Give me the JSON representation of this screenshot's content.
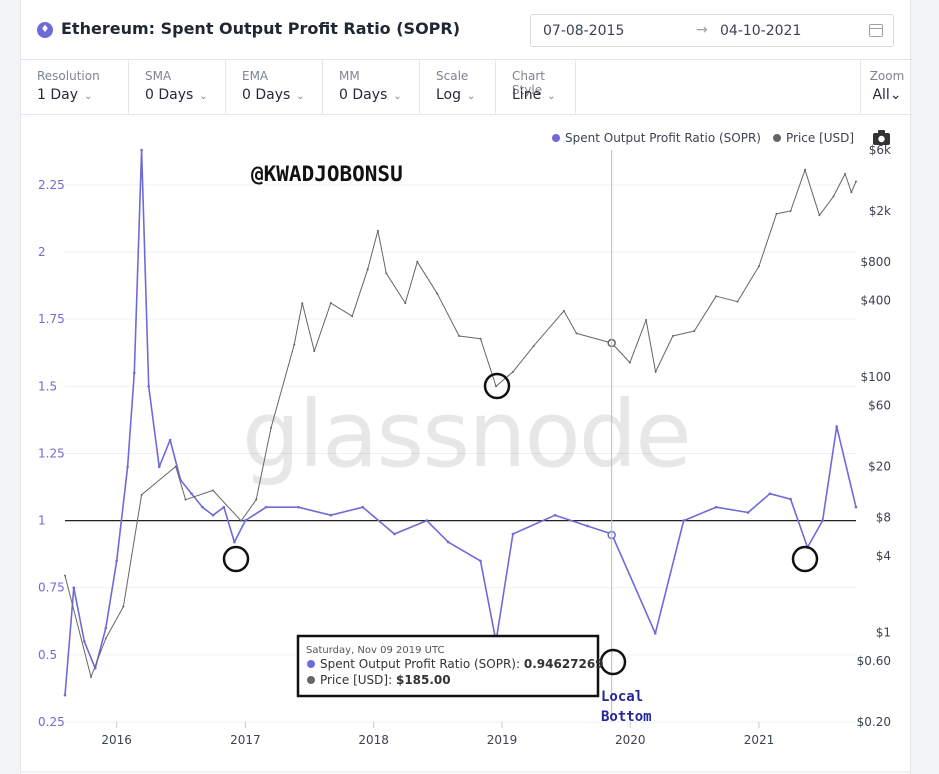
{
  "header": {
    "title": "Ethereum: Spent Output Profit Ratio (SOPR)",
    "date_from": "07-08-2015",
    "date_to": "04-10-2021",
    "arrow": "→"
  },
  "toolbar": {
    "controls": [
      {
        "label": "Resolution",
        "value": "1 Day"
      },
      {
        "label": "SMA",
        "value": "0 Days"
      },
      {
        "label": "EMA",
        "value": "0 Days"
      },
      {
        "label": "MM",
        "value": "0 Days"
      },
      {
        "label": "Scale",
        "value": "Log"
      },
      {
        "label": "Chart Style",
        "value": "Line"
      }
    ],
    "zoom": {
      "label": "Zoom",
      "value": "All"
    }
  },
  "colors": {
    "sopr": "#6f6bd6",
    "price": "#666666",
    "baseline": "#222222"
  },
  "overlays": {
    "watermark": "glassnode",
    "handle": "@KWADJOBONSU",
    "annotation": [
      "Local",
      "Bottom"
    ]
  },
  "tooltip": {
    "date": "Saturday, Nov 09 2019 UTC",
    "sopr_label": "Spent Output Profit Ratio (SOPR):",
    "sopr_value": "0.94627269",
    "price_label": "Price [USD]:",
    "price_value": "$185.00"
  },
  "chart_data": {
    "type": "line",
    "legend_position": "top-right",
    "series": [
      {
        "name": "Spent Output Profit Ratio (SOPR)",
        "axis": "left",
        "points": [
          [
            "2015-08-07",
            0.35
          ],
          [
            "2015-09-01",
            0.75
          ],
          [
            "2015-10-01",
            0.55
          ],
          [
            "2015-11-01",
            0.45
          ],
          [
            "2015-12-01",
            0.6
          ],
          [
            "2016-01-01",
            0.85
          ],
          [
            "2016-02-01",
            1.2
          ],
          [
            "2016-02-20",
            1.55
          ],
          [
            "2016-03-12",
            2.38
          ],
          [
            "2016-04-01",
            1.5
          ],
          [
            "2016-05-01",
            1.2
          ],
          [
            "2016-06-01",
            1.3
          ],
          [
            "2016-07-01",
            1.15
          ],
          [
            "2016-08-01",
            1.1
          ],
          [
            "2016-09-01",
            1.05
          ],
          [
            "2016-10-01",
            1.02
          ],
          [
            "2016-11-01",
            1.05
          ],
          [
            "2016-12-01",
            0.92
          ],
          [
            "2017-01-01",
            1.0
          ],
          [
            "2017-03-01",
            1.05
          ],
          [
            "2017-06-01",
            1.05
          ],
          [
            "2017-09-01",
            1.02
          ],
          [
            "2017-12-01",
            1.05
          ],
          [
            "2018-03-01",
            0.95
          ],
          [
            "2018-06-01",
            1.0
          ],
          [
            "2018-08-01",
            0.92
          ],
          [
            "2018-11-01",
            0.85
          ],
          [
            "2018-12-15",
            0.55
          ],
          [
            "2019-02-01",
            0.95
          ],
          [
            "2019-06-01",
            1.02
          ],
          [
            "2019-09-01",
            0.98
          ],
          [
            "2019-11-09",
            0.95
          ],
          [
            "2020-03-12",
            0.58
          ],
          [
            "2020-06-01",
            1.0
          ],
          [
            "2020-09-01",
            1.05
          ],
          [
            "2020-12-01",
            1.03
          ],
          [
            "2021-02-01",
            1.1
          ],
          [
            "2021-04-01",
            1.08
          ],
          [
            "2021-05-19",
            0.9
          ],
          [
            "2021-07-01",
            1.0
          ],
          [
            "2021-08-10",
            1.35
          ],
          [
            "2021-10-04",
            1.05
          ]
        ]
      },
      {
        "name": "Price [USD]",
        "axis": "right",
        "points": [
          [
            "2015-08-07",
            2.8
          ],
          [
            "2015-10-20",
            0.45
          ],
          [
            "2015-12-01",
            0.9
          ],
          [
            "2016-01-20",
            1.6
          ],
          [
            "2016-03-12",
            12
          ],
          [
            "2016-06-17",
            20
          ],
          [
            "2016-07-15",
            11
          ],
          [
            "2016-10-01",
            13
          ],
          [
            "2016-12-20",
            7.5
          ],
          [
            "2017-02-01",
            11
          ],
          [
            "2017-03-15",
            40
          ],
          [
            "2017-05-20",
            180
          ],
          [
            "2017-06-12",
            380
          ],
          [
            "2017-07-16",
            160
          ],
          [
            "2017-09-01",
            380
          ],
          [
            "2017-11-01",
            300
          ],
          [
            "2017-12-15",
            700
          ],
          [
            "2018-01-13",
            1400
          ],
          [
            "2018-02-06",
            650
          ],
          [
            "2018-04-01",
            380
          ],
          [
            "2018-05-05",
            800
          ],
          [
            "2018-07-01",
            450
          ],
          [
            "2018-09-01",
            210
          ],
          [
            "2018-11-01",
            200
          ],
          [
            "2018-12-15",
            85
          ],
          [
            "2019-02-01",
            110
          ],
          [
            "2019-04-01",
            175
          ],
          [
            "2019-06-26",
            330
          ],
          [
            "2019-08-01",
            220
          ],
          [
            "2019-11-09",
            185
          ],
          [
            "2019-12-31",
            130
          ],
          [
            "2020-02-15",
            280
          ],
          [
            "2020-03-13",
            110
          ],
          [
            "2020-05-01",
            210
          ],
          [
            "2020-07-01",
            230
          ],
          [
            "2020-09-01",
            430
          ],
          [
            "2020-11-01",
            390
          ],
          [
            "2021-01-01",
            740
          ],
          [
            "2021-02-20",
            1900
          ],
          [
            "2021-04-01",
            2000
          ],
          [
            "2021-05-12",
            4200
          ],
          [
            "2021-06-22",
            1850
          ],
          [
            "2021-08-01",
            2600
          ],
          [
            "2021-09-03",
            3900
          ],
          [
            "2021-09-21",
            2800
          ],
          [
            "2021-10-04",
            3400
          ]
        ]
      }
    ],
    "x_ticks": [
      "2016",
      "2017",
      "2018",
      "2019",
      "2020",
      "2021"
    ],
    "left_ticks": [
      "2.25",
      "2",
      "1.75",
      "1.5",
      "1.25",
      "1",
      "0.75",
      "0.5",
      "0.25"
    ],
    "left_tick_values": [
      2.25,
      2,
      1.75,
      1.5,
      1.25,
      1,
      0.75,
      0.5,
      0.25
    ],
    "right_ticks": [
      "$6k",
      "$2k",
      "$800",
      "$400",
      "$100",
      "$60",
      "$20",
      "$8",
      "$4",
      "$1",
      "$0.60",
      "$0.20"
    ],
    "right_tick_values": [
      6000,
      2000,
      800,
      400,
      100,
      60,
      20,
      8,
      4,
      1,
      0.6,
      0.2
    ],
    "left_ylim": [
      0.25,
      2.38
    ],
    "right_ylim": [
      0.2,
      6000
    ],
    "right_scale": "log",
    "baseline": 1,
    "grid": true
  }
}
